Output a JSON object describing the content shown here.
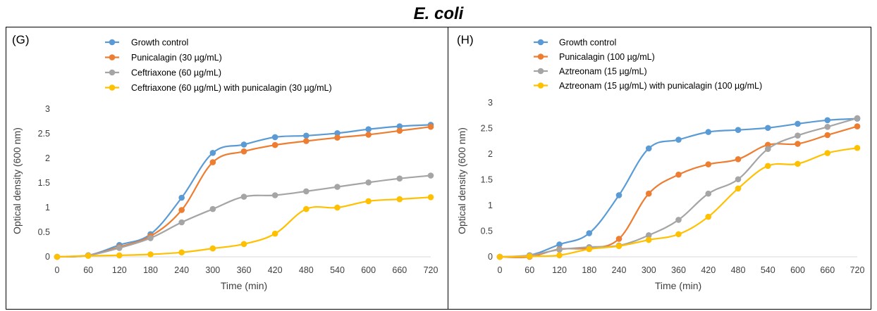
{
  "figure_title": "E. coli",
  "chart_data": [
    {
      "panel_label": "(G)",
      "type": "line",
      "x": [
        0,
        60,
        120,
        180,
        240,
        300,
        360,
        420,
        480,
        540,
        600,
        660,
        720
      ],
      "xlabel": "Time (min)",
      "ylabel": "Optical density (600 nm)",
      "xticks": [
        "0",
        "60",
        "120",
        "180",
        "240",
        "300",
        "360",
        "420",
        "480",
        "540",
        "600",
        "660",
        "720"
      ],
      "yticks": [
        "0",
        "0.5",
        "1",
        "1.5",
        "2",
        "2.5",
        "3"
      ],
      "ylim": [
        0,
        3
      ],
      "grid": false,
      "legend_position": "top-left",
      "series": [
        {
          "name": "Growth control",
          "color": "#5B9BD5",
          "values": [
            0.0,
            0.03,
            0.24,
            0.46,
            1.2,
            2.11,
            2.28,
            2.43,
            2.46,
            2.51,
            2.59,
            2.65,
            2.68
          ]
        },
        {
          "name": " Punicalagin (30 µg/mL)",
          "color": "#ED7D31",
          "values": [
            0.0,
            0.03,
            0.2,
            0.42,
            0.95,
            1.92,
            2.14,
            2.27,
            2.35,
            2.42,
            2.48,
            2.56,
            2.64
          ]
        },
        {
          "name": "Ceftriaxone (60 µg/mL)",
          "color": "#A5A5A5",
          "values": [
            0.0,
            0.03,
            0.18,
            0.38,
            0.7,
            0.97,
            1.22,
            1.25,
            1.33,
            1.42,
            1.51,
            1.59,
            1.65
          ]
        },
        {
          "name": "Ceftriaxone (60  µg/mL) with punicalagin (30 µg/mL)",
          "color": "#FFC000",
          "values": [
            0.0,
            0.02,
            0.03,
            0.05,
            0.09,
            0.17,
            0.26,
            0.47,
            0.97,
            1.0,
            1.13,
            1.17,
            1.21
          ]
        }
      ]
    },
    {
      "panel_label": "(H)",
      "type": "line",
      "x": [
        0,
        60,
        120,
        180,
        240,
        300,
        360,
        420,
        480,
        540,
        600,
        660,
        720
      ],
      "xlabel": "Time (min)",
      "ylabel": "Optical density (600 nm)",
      "xticks": [
        "0",
        "60",
        "120",
        "180",
        "240",
        "300",
        "360",
        "420",
        "480",
        "540",
        "600",
        "660",
        "720"
      ],
      "yticks": [
        "0",
        "0.5",
        "1",
        "1.5",
        "2",
        "2.5",
        "3"
      ],
      "ylim": [
        0,
        3
      ],
      "grid": false,
      "legend_position": "top-center",
      "series": [
        {
          "name": "Growth control",
          "color": "#5B9BD5",
          "values": [
            0.0,
            0.03,
            0.24,
            0.46,
            1.2,
            2.11,
            2.28,
            2.43,
            2.47,
            2.51,
            2.59,
            2.66,
            2.69
          ]
        },
        {
          "name": " Punicalagin (100 µg/mL)",
          "color": "#ED7D31",
          "values": [
            0.0,
            0.0,
            0.15,
            0.17,
            0.35,
            1.23,
            1.6,
            1.8,
            1.9,
            2.18,
            2.2,
            2.37,
            2.54
          ]
        },
        {
          "name": "Aztreonam (15 µg/mL)",
          "color": "#A5A5A5",
          "values": [
            0.0,
            0.03,
            0.14,
            0.19,
            0.22,
            0.42,
            0.72,
            1.23,
            1.51,
            2.1,
            2.36,
            2.53,
            2.7
          ]
        },
        {
          "name": "Aztreonam (15  µg/mL) with punicalagin (100 µg/mL)",
          "color": "#FFC000",
          "values": [
            0.0,
            0.01,
            0.03,
            0.15,
            0.21,
            0.33,
            0.44,
            0.78,
            1.33,
            1.77,
            1.81,
            2.02,
            2.12
          ]
        }
      ]
    }
  ]
}
